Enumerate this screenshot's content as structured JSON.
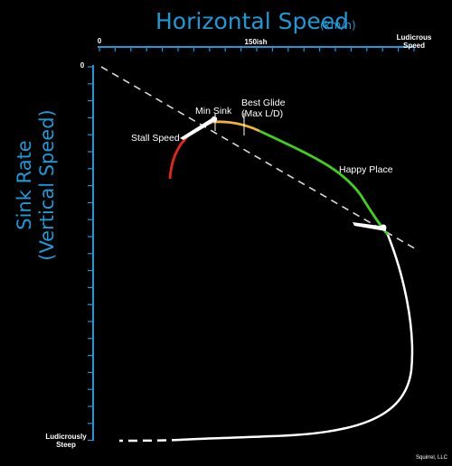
{
  "title": "Horizontal Speed",
  "title_units": "(km/h)",
  "x_ticks": {
    "zero": "0",
    "mid": "150ish",
    "max_line1": "Ludicrous",
    "max_line2": "Speed"
  },
  "y_title_line1": "Sink Rate",
  "y_title_line2": "(Vertical Speed)",
  "y_ticks": {
    "zero": "0",
    "max_line1": "Ludicrously",
    "max_line2": "Steep"
  },
  "annotations": {
    "min_sink": "Min Sink",
    "best_glide_line1": "Best Glide",
    "best_glide_line2": "(Max L/D)",
    "stall_speed": "Stall Speed",
    "happy_place": "Happy Place"
  },
  "credit": "Squirrel, LLC",
  "colors": {
    "axis": "#1d9ad6",
    "stall_segment": "#e8261b",
    "best_glide_segment": "#f3b23a",
    "happy_segment": "#3fd11b",
    "overspeed_segment": "#ffffff",
    "glide_line": "#d9d9d9"
  }
}
